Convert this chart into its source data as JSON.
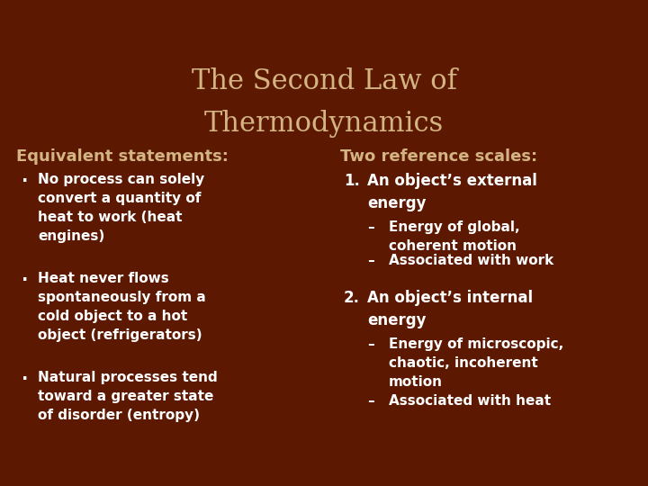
{
  "background_color": "#5C1800",
  "title_line1": "The Second Law of",
  "title_line2": "Thermodynamics",
  "title_color": "#D4B483",
  "title_fontsize": 22,
  "left_header": "Equivalent statements:",
  "right_header": "Two reference scales:",
  "header_color": "#D4B483",
  "header_fontsize": 13,
  "body_color": "#FFFFFF",
  "body_fontsize": 11,
  "left_bullets": [
    "No process can solely\nconvert a quantity of\nheat to work (heat\nengines)",
    "Heat never flows\nspontaneously from a\ncold object to a hot\nobject (refrigerators)",
    "Natural processes tend\ntoward a greater state\nof disorder (entropy)"
  ],
  "right_items": [
    {
      "label": "1.",
      "text": "An object’s external\nenergy",
      "indent": 0
    },
    {
      "label": "–",
      "text": "Energy of global,\ncoherent motion",
      "indent": 1
    },
    {
      "label": "–",
      "text": "Associated with work",
      "indent": 1
    },
    {
      "label": "2.",
      "text": "An object’s internal\nenergy",
      "indent": 0
    },
    {
      "label": "–",
      "text": "Energy of microscopic,\nchaotic, incoherent\nmotion",
      "indent": 1
    },
    {
      "label": "–",
      "text": "Associated with heat",
      "indent": 1
    }
  ]
}
